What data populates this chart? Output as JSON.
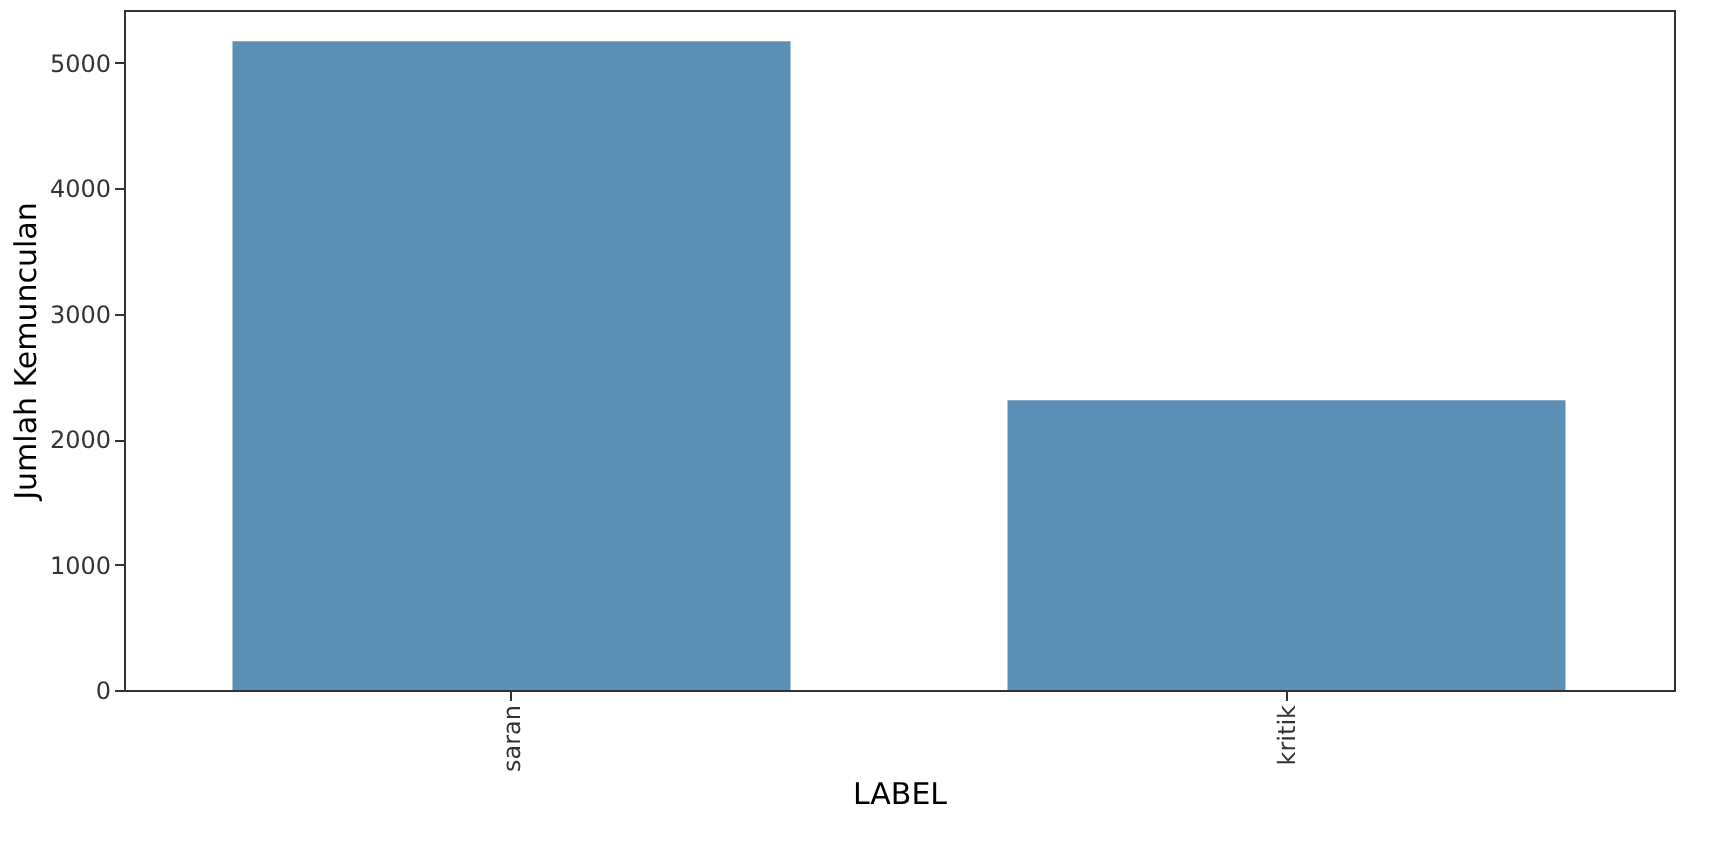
{
  "chart_data": {
    "type": "bar",
    "xlabel": "LABEL",
    "ylabel": "Jumlah Kemunculan",
    "categories": [
      "saran",
      "kritik"
    ],
    "values": [
      5170,
      2310
    ],
    "color": "#5b8fb5",
    "ylim": [
      0,
      5420
    ],
    "yticks": [
      0,
      1000,
      2000,
      3000,
      4000,
      5000
    ],
    "grid": false
  }
}
